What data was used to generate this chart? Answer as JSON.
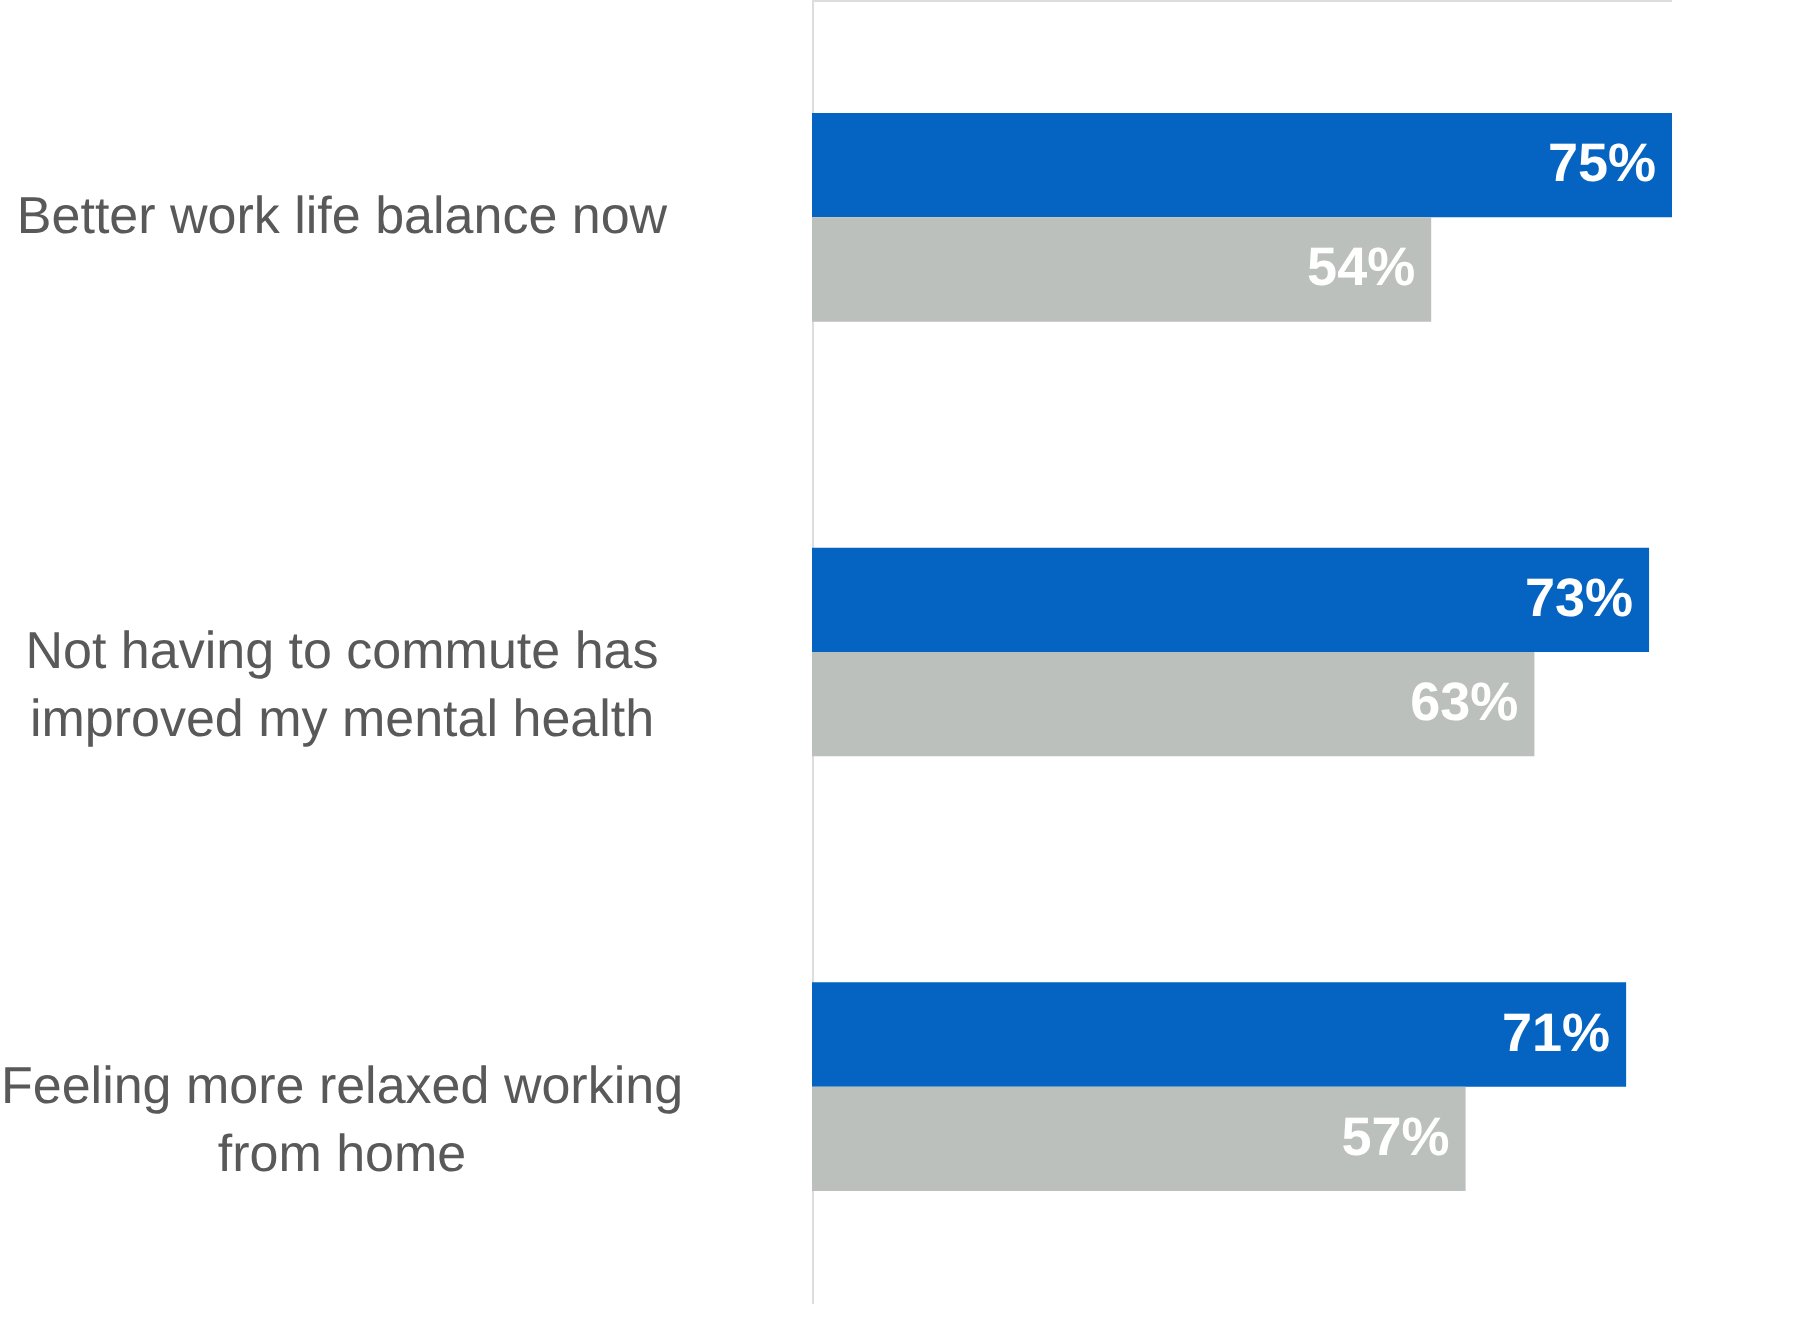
{
  "chart_data": {
    "type": "bar",
    "orientation": "horizontal",
    "categories": [
      "Better work life balance now",
      "Not having to commute has improved my mental health",
      "Feeling more relaxed working from home"
    ],
    "series": [
      {
        "color": "#0563c1",
        "values": [
          75,
          73,
          71
        ],
        "value_labels": [
          "75%",
          "73%",
          "71%"
        ]
      },
      {
        "color": "#bcc0bd",
        "values": [
          54,
          63,
          57
        ],
        "value_labels": [
          "54%",
          "63%",
          "57%"
        ]
      }
    ]
  }
}
